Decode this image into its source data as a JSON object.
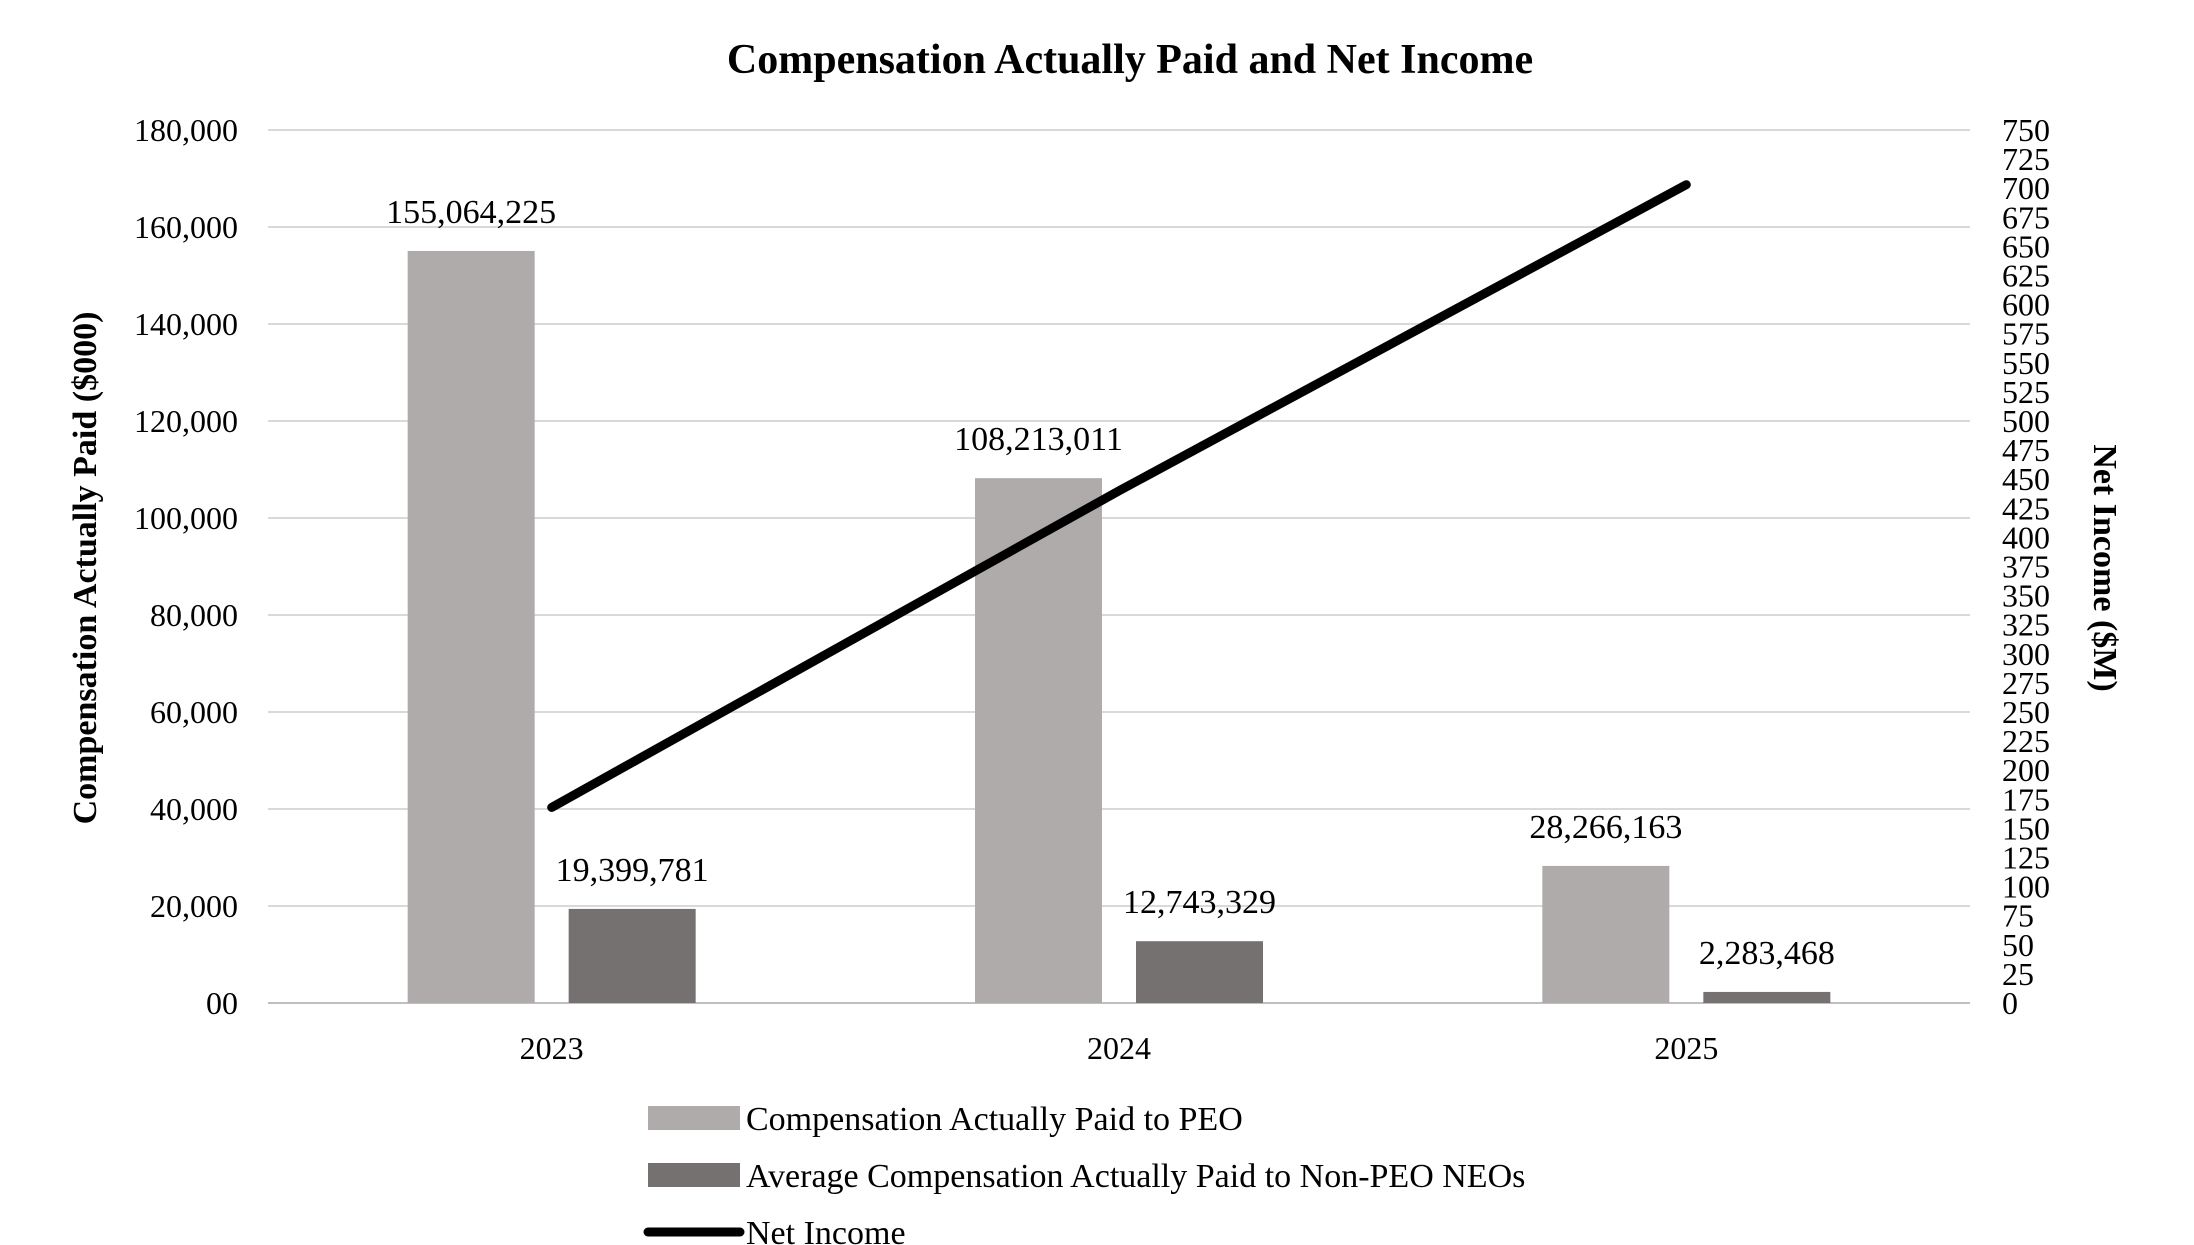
{
  "chart_data": {
    "type": "bar",
    "title": "Compensation Actually Paid and Net Income",
    "categories": [
      "2023",
      "2024",
      "2025"
    ],
    "ylabel": "Compensation Actually Paid ($000)",
    "y2label": "Net Income ($M)",
    "ylim": [
      0,
      180000
    ],
    "y2lim": [
      0,
      750
    ],
    "yticks": [
      "00",
      "20,000",
      "40,000",
      "60,000",
      "80,000",
      "100,000",
      "120,000",
      "140,000",
      "160,000",
      "180,000"
    ],
    "y2ticks": [
      "0",
      "25",
      "50",
      "75",
      "100",
      "125",
      "150",
      "175",
      "200",
      "225",
      "250",
      "275",
      "300",
      "325",
      "350",
      "375",
      "400",
      "425",
      "450",
      "475",
      "500",
      "525",
      "550",
      "575",
      "600",
      "625",
      "650",
      "675",
      "700",
      "725",
      "750"
    ],
    "grid": true,
    "series": [
      {
        "name": "Compensation Actually Paid to PEO",
        "kind": "bar",
        "axis": "left",
        "values": [
          155064.225,
          108213.011,
          28266.163
        ],
        "labels": [
          "155,064,225",
          "108,213,011",
          "28,266,163"
        ],
        "color": "#afabaa"
      },
      {
        "name": "Average Compensation Actually Paid to Non-PEO NEOs",
        "kind": "bar",
        "axis": "left",
        "values": [
          19399.781,
          12743.329,
          2283.468
        ],
        "labels": [
          "19,399,781",
          "12,743,329",
          "2,283,468"
        ],
        "color": "#757170"
      },
      {
        "name": "Net Income",
        "kind": "line",
        "axis": "right",
        "values": [
          168,
          440,
          703
        ],
        "color": "#000000"
      }
    ],
    "legend_position": "bottom"
  }
}
